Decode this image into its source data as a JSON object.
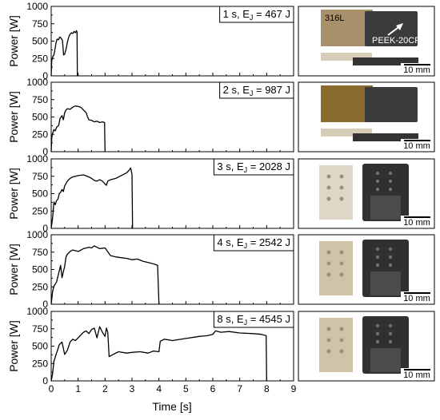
{
  "chart_data": {
    "type": "line",
    "xlabel": "Time [s]",
    "ylabel": "Power [W]",
    "xlim": [
      0,
      9
    ],
    "ylim": [
      0,
      1000
    ],
    "xticks": [
      0,
      1,
      2,
      3,
      4,
      5,
      6,
      7,
      8,
      9
    ],
    "yticks": [
      0,
      250,
      500,
      750,
      1000
    ],
    "grid": false,
    "panels": [
      {
        "label": "1 s, E_J = 467 J",
        "label_main": "1 s, E",
        "label_sub": "J",
        "label_rest": " = 467 J",
        "points": [
          [
            0,
            0
          ],
          [
            0.02,
            220
          ],
          [
            0.06,
            280
          ],
          [
            0.1,
            300
          ],
          [
            0.14,
            380
          ],
          [
            0.18,
            480
          ],
          [
            0.22,
            530
          ],
          [
            0.27,
            520
          ],
          [
            0.32,
            560
          ],
          [
            0.37,
            540
          ],
          [
            0.42,
            510
          ],
          [
            0.46,
            300
          ],
          [
            0.5,
            310
          ],
          [
            0.55,
            380
          ],
          [
            0.6,
            480
          ],
          [
            0.65,
            560
          ],
          [
            0.7,
            600
          ],
          [
            0.75,
            620
          ],
          [
            0.8,
            610
          ],
          [
            0.85,
            640
          ],
          [
            0.9,
            620
          ],
          [
            0.94,
            650
          ],
          [
            0.96,
            630
          ],
          [
            0.97,
            0
          ]
        ],
        "photo": {
          "text_a": "316L",
          "text_b": "PEEK-20CF",
          "scale": "10 mm"
        }
      },
      {
        "label": "2 s, E_J = 987 J",
        "label_main": "2 s, E",
        "label_sub": "J",
        "label_rest": " = 987 J",
        "points": [
          [
            0,
            0
          ],
          [
            0.02,
            200
          ],
          [
            0.05,
            260
          ],
          [
            0.1,
            320
          ],
          [
            0.15,
            300
          ],
          [
            0.2,
            350
          ],
          [
            0.28,
            380
          ],
          [
            0.33,
            480
          ],
          [
            0.4,
            520
          ],
          [
            0.45,
            460
          ],
          [
            0.5,
            560
          ],
          [
            0.55,
            600
          ],
          [
            0.6,
            620
          ],
          [
            0.7,
            610
          ],
          [
            0.8,
            640
          ],
          [
            0.9,
            660
          ],
          [
            1.0,
            650
          ],
          [
            1.1,
            640
          ],
          [
            1.2,
            600
          ],
          [
            1.3,
            560
          ],
          [
            1.35,
            500
          ],
          [
            1.4,
            460
          ],
          [
            1.5,
            450
          ],
          [
            1.6,
            430
          ],
          [
            1.7,
            440
          ],
          [
            1.8,
            420
          ],
          [
            1.9,
            430
          ],
          [
            1.98,
            420
          ],
          [
            2.0,
            0
          ]
        ],
        "photo": {
          "scale": "10 mm"
        }
      },
      {
        "label": "3 s, E_J = 2028 J",
        "label_main": "3 s, E",
        "label_sub": "J",
        "label_rest": " = 2028 J",
        "points": [
          [
            0,
            0
          ],
          [
            0.05,
            150
          ],
          [
            0.1,
            380
          ],
          [
            0.15,
            340
          ],
          [
            0.2,
            400
          ],
          [
            0.25,
            420
          ],
          [
            0.3,
            500
          ],
          [
            0.35,
            520
          ],
          [
            0.4,
            560
          ],
          [
            0.45,
            530
          ],
          [
            0.5,
            610
          ],
          [
            0.6,
            680
          ],
          [
            0.7,
            720
          ],
          [
            0.8,
            740
          ],
          [
            0.9,
            750
          ],
          [
            1.0,
            760
          ],
          [
            1.2,
            770
          ],
          [
            1.4,
            740
          ],
          [
            1.5,
            720
          ],
          [
            1.6,
            690
          ],
          [
            1.7,
            680
          ],
          [
            1.8,
            700
          ],
          [
            1.9,
            680
          ],
          [
            2.0,
            640
          ],
          [
            2.05,
            620
          ],
          [
            2.1,
            680
          ],
          [
            2.2,
            700
          ],
          [
            2.4,
            720
          ],
          [
            2.6,
            760
          ],
          [
            2.8,
            800
          ],
          [
            2.9,
            840
          ],
          [
            2.95,
            870
          ],
          [
            3.0,
            780
          ],
          [
            3.02,
            0
          ]
        ],
        "photo": {
          "scale": "10 mm"
        }
      },
      {
        "label": "4 s, E_J = 2542 J",
        "label_main": "4 s, E",
        "label_sub": "J",
        "label_rest": " = 2542 J",
        "points": [
          [
            0,
            0
          ],
          [
            0.05,
            180
          ],
          [
            0.1,
            260
          ],
          [
            0.2,
            320
          ],
          [
            0.3,
            480
          ],
          [
            0.35,
            560
          ],
          [
            0.4,
            380
          ],
          [
            0.45,
            470
          ],
          [
            0.5,
            540
          ],
          [
            0.55,
            680
          ],
          [
            0.6,
            720
          ],
          [
            0.7,
            760
          ],
          [
            0.8,
            780
          ],
          [
            0.9,
            770
          ],
          [
            1.0,
            760
          ],
          [
            1.2,
            800
          ],
          [
            1.4,
            820
          ],
          [
            1.5,
            810
          ],
          [
            1.6,
            840
          ],
          [
            1.8,
            800
          ],
          [
            2.0,
            810
          ],
          [
            2.2,
            700
          ],
          [
            2.4,
            680
          ],
          [
            2.6,
            670
          ],
          [
            2.8,
            660
          ],
          [
            3.0,
            640
          ],
          [
            3.2,
            650
          ],
          [
            3.4,
            620
          ],
          [
            3.6,
            600
          ],
          [
            3.8,
            580
          ],
          [
            3.95,
            560
          ],
          [
            4.0,
            0
          ]
        ],
        "photo": {
          "scale": "10 mm"
        }
      },
      {
        "label": "8 s, E_J = 4545 J",
        "label_main": "8 s, E",
        "label_sub": "J",
        "label_rest": " = 4545 J",
        "points": [
          [
            0,
            0
          ],
          [
            0.05,
            100
          ],
          [
            0.1,
            280
          ],
          [
            0.2,
            400
          ],
          [
            0.3,
            520
          ],
          [
            0.4,
            560
          ],
          [
            0.5,
            380
          ],
          [
            0.6,
            440
          ],
          [
            0.7,
            560
          ],
          [
            0.8,
            600
          ],
          [
            0.9,
            580
          ],
          [
            1.0,
            620
          ],
          [
            1.1,
            660
          ],
          [
            1.2,
            700
          ],
          [
            1.3,
            720
          ],
          [
            1.4,
            680
          ],
          [
            1.5,
            740
          ],
          [
            1.6,
            760
          ],
          [
            1.7,
            620
          ],
          [
            1.8,
            780
          ],
          [
            1.9,
            700
          ],
          [
            2.0,
            640
          ],
          [
            2.05,
            760
          ],
          [
            2.1,
            700
          ],
          [
            2.15,
            350
          ],
          [
            2.3,
            380
          ],
          [
            2.5,
            420
          ],
          [
            2.8,
            400
          ],
          [
            3.0,
            410
          ],
          [
            3.3,
            420
          ],
          [
            3.6,
            400
          ],
          [
            3.8,
            430
          ],
          [
            4.0,
            420
          ],
          [
            4.05,
            570
          ],
          [
            4.2,
            600
          ],
          [
            4.5,
            580
          ],
          [
            5.0,
            610
          ],
          [
            5.5,
            640
          ],
          [
            5.8,
            650
          ],
          [
            6.0,
            670
          ],
          [
            6.1,
            720
          ],
          [
            6.3,
            700
          ],
          [
            6.6,
            710
          ],
          [
            7.0,
            690
          ],
          [
            7.5,
            680
          ],
          [
            7.8,
            670
          ],
          [
            7.98,
            650
          ],
          [
            8.0,
            0
          ]
        ],
        "photo": {
          "scale": "10 mm"
        }
      }
    ]
  }
}
